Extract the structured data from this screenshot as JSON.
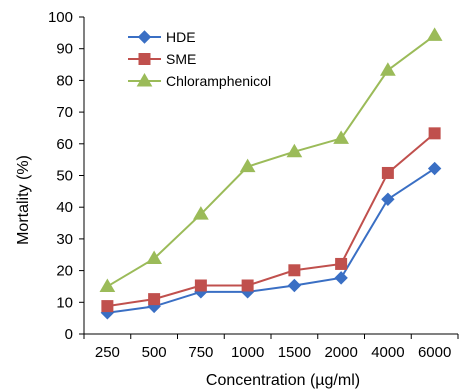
{
  "chart_data": {
    "type": "line",
    "title": "",
    "xlabel": "Concentration (µg/ml)",
    "ylabel": "Mortality (%)",
    "ylim": [
      0,
      100
    ],
    "yticks": [
      0,
      10,
      20,
      30,
      40,
      50,
      60,
      70,
      80,
      90,
      100
    ],
    "categories": [
      "250",
      "500",
      "750",
      "1000",
      "1500",
      "2000",
      "4000",
      "6000"
    ],
    "grid": false,
    "legend_position": "top-left",
    "series": [
      {
        "name": "HDE",
        "color": "#3a6fc4",
        "marker": "diamond",
        "values": [
          6.7,
          8.7,
          13.3,
          13.3,
          15.3,
          17.7,
          42.5,
          52.2
        ]
      },
      {
        "name": "SME",
        "color": "#c0504d",
        "marker": "square",
        "values": [
          8.8,
          11.0,
          15.3,
          15.3,
          20.1,
          22.1,
          50.8,
          63.3
        ]
      },
      {
        "name": "Chloramphenicol",
        "color": "#9bbb59",
        "marker": "triangle",
        "values": [
          15.0,
          23.8,
          37.8,
          52.8,
          57.5,
          61.7,
          83.2,
          94.2
        ]
      }
    ]
  }
}
